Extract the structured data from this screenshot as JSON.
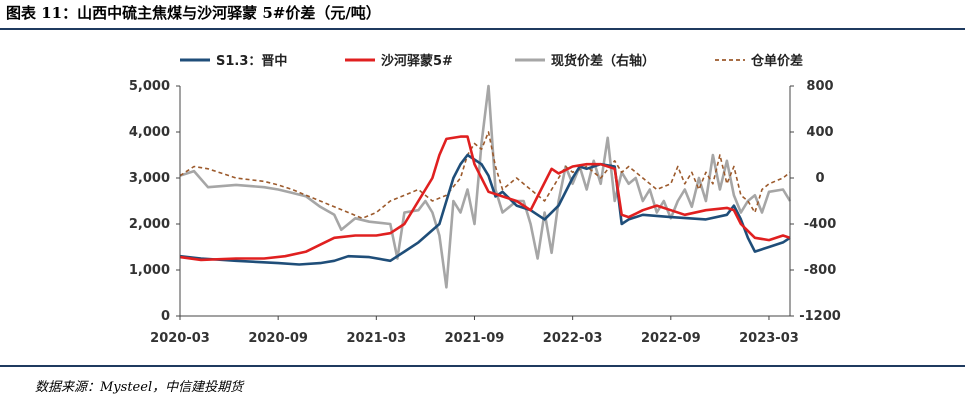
{
  "header": {
    "title": "图表 11：山西中硫主焦煤与沙河驿蒙 5#价差（元/吨）"
  },
  "footer": {
    "source": "数据来源：Mysteel，中信建投期货"
  },
  "chart_data": {
    "type": "line",
    "x_ticks": [
      "2020-03",
      "2020-09",
      "2021-03",
      "2021-09",
      "2022-03",
      "2022-09",
      "2023-03"
    ],
    "x_range": [
      "2020-03",
      "2023-08"
    ],
    "y_left": {
      "ticks": [
        "0",
        "1,000",
        "2,000",
        "3,000",
        "4,000",
        "5,000"
      ],
      "range": [
        0,
        5000
      ]
    },
    "y_right": {
      "ticks": [
        "-1200",
        "-800",
        "-400",
        "0",
        "400",
        "800"
      ],
      "range": [
        -1200,
        800
      ]
    },
    "legend_position": "top",
    "grid": false,
    "series": [
      {
        "name": "S1.3：晋中",
        "axis": "left",
        "color": "#1f4e79",
        "style": "solid",
        "points": [
          [
            0,
            1300
          ],
          [
            3,
            1250
          ],
          [
            8,
            1200
          ],
          [
            14,
            1150
          ],
          [
            17,
            1120
          ],
          [
            20,
            1150
          ],
          [
            22,
            1200
          ],
          [
            24,
            1300
          ],
          [
            27,
            1280
          ],
          [
            30,
            1200
          ],
          [
            32,
            1400
          ],
          [
            34,
            1600
          ],
          [
            37,
            2000
          ],
          [
            38,
            2500
          ],
          [
            39,
            3000
          ],
          [
            40,
            3300
          ],
          [
            41,
            3500
          ],
          [
            43,
            3300
          ],
          [
            44,
            3050
          ],
          [
            45,
            2600
          ],
          [
            46,
            2700
          ],
          [
            48,
            2400
          ],
          [
            50,
            2300
          ],
          [
            52,
            2100
          ],
          [
            54,
            2400
          ],
          [
            56,
            3000
          ],
          [
            57,
            3250
          ],
          [
            58,
            3200
          ],
          [
            60,
            3300
          ],
          [
            62,
            3250
          ],
          [
            63,
            2000
          ],
          [
            64,
            2100
          ],
          [
            66,
            2200
          ],
          [
            70,
            2150
          ],
          [
            75,
            2100
          ],
          [
            78,
            2200
          ],
          [
            79,
            2400
          ],
          [
            80,
            2100
          ],
          [
            81,
            1700
          ],
          [
            82,
            1400
          ],
          [
            84,
            1500
          ],
          [
            86,
            1600
          ],
          [
            87,
            1700
          ]
        ]
      },
      {
        "name": "沙河驿蒙5#",
        "axis": "left",
        "color": "#e02020",
        "style": "solid",
        "points": [
          [
            0,
            1280
          ],
          [
            3,
            1220
          ],
          [
            8,
            1250
          ],
          [
            12,
            1250
          ],
          [
            15,
            1300
          ],
          [
            18,
            1400
          ],
          [
            20,
            1550
          ],
          [
            22,
            1700
          ],
          [
            25,
            1750
          ],
          [
            28,
            1750
          ],
          [
            30,
            1800
          ],
          [
            32,
            2000
          ],
          [
            34,
            2500
          ],
          [
            36,
            3000
          ],
          [
            37,
            3500
          ],
          [
            38,
            3850
          ],
          [
            40,
            3900
          ],
          [
            41,
            3900
          ],
          [
            42,
            3300
          ],
          [
            43,
            3000
          ],
          [
            44,
            2700
          ],
          [
            46,
            2600
          ],
          [
            48,
            2500
          ],
          [
            50,
            2300
          ],
          [
            51,
            2600
          ],
          [
            53,
            3200
          ],
          [
            54,
            3100
          ],
          [
            56,
            3250
          ],
          [
            58,
            3300
          ],
          [
            60,
            3300
          ],
          [
            62,
            3200
          ],
          [
            63,
            2200
          ],
          [
            64,
            2150
          ],
          [
            66,
            2300
          ],
          [
            68,
            2400
          ],
          [
            70,
            2300
          ],
          [
            72,
            2200
          ],
          [
            75,
            2300
          ],
          [
            78,
            2350
          ],
          [
            79,
            2300
          ],
          [
            80,
            2000
          ],
          [
            81,
            1850
          ],
          [
            82,
            1700
          ],
          [
            84,
            1650
          ],
          [
            86,
            1750
          ],
          [
            87,
            1700
          ]
        ]
      },
      {
        "name": "现货价差（右轴）",
        "axis": "right",
        "color": "#a6a6a6",
        "style": "solid",
        "points": [
          [
            0,
            20
          ],
          [
            2,
            60
          ],
          [
            4,
            -80
          ],
          [
            8,
            -60
          ],
          [
            12,
            -80
          ],
          [
            14,
            -100
          ],
          [
            16,
            -130
          ],
          [
            18,
            -160
          ],
          [
            20,
            -250
          ],
          [
            22,
            -320
          ],
          [
            23,
            -450
          ],
          [
            25,
            -350
          ],
          [
            27,
            -380
          ],
          [
            30,
            -400
          ],
          [
            31,
            -700
          ],
          [
            32,
            -300
          ],
          [
            34,
            -280
          ],
          [
            35,
            -200
          ],
          [
            36,
            -300
          ],
          [
            37,
            -500
          ],
          [
            38,
            -950
          ],
          [
            39,
            -200
          ],
          [
            40,
            -300
          ],
          [
            41,
            -100
          ],
          [
            42,
            -400
          ],
          [
            43,
            300
          ],
          [
            44,
            800
          ],
          [
            45,
            -100
          ],
          [
            46,
            -300
          ],
          [
            48,
            -200
          ],
          [
            49,
            -200
          ],
          [
            50,
            -400
          ],
          [
            51,
            -700
          ],
          [
            52,
            -300
          ],
          [
            53,
            -650
          ],
          [
            54,
            -200
          ],
          [
            55,
            100
          ],
          [
            56,
            -50
          ],
          [
            57,
            100
          ],
          [
            58,
            -100
          ],
          [
            59,
            150
          ],
          [
            60,
            -50
          ],
          [
            61,
            350
          ],
          [
            62,
            -200
          ],
          [
            63,
            50
          ],
          [
            64,
            -50
          ],
          [
            65,
            0
          ],
          [
            66,
            -200
          ],
          [
            67,
            -100
          ],
          [
            68,
            -300
          ],
          [
            69,
            -200
          ],
          [
            70,
            -350
          ],
          [
            71,
            -200
          ],
          [
            72,
            -100
          ],
          [
            73,
            -250
          ],
          [
            74,
            0
          ],
          [
            75,
            -200
          ],
          [
            76,
            200
          ],
          [
            77,
            -100
          ],
          [
            78,
            150
          ],
          [
            79,
            -150
          ],
          [
            80,
            -300
          ],
          [
            81,
            -200
          ],
          [
            82,
            -150
          ],
          [
            83,
            -300
          ],
          [
            84,
            -120
          ],
          [
            86,
            -100
          ],
          [
            87,
            -200
          ]
        ]
      },
      {
        "name": "仓单价差",
        "axis": "right",
        "color": "#9c5a2c",
        "style": "dashed",
        "points": [
          [
            0,
            20
          ],
          [
            2,
            100
          ],
          [
            4,
            80
          ],
          [
            6,
            40
          ],
          [
            8,
            0
          ],
          [
            12,
            -30
          ],
          [
            14,
            -60
          ],
          [
            16,
            -100
          ],
          [
            18,
            -150
          ],
          [
            20,
            -200
          ],
          [
            22,
            -250
          ],
          [
            24,
            -300
          ],
          [
            26,
            -350
          ],
          [
            28,
            -300
          ],
          [
            30,
            -200
          ],
          [
            32,
            -150
          ],
          [
            34,
            -100
          ],
          [
            36,
            -200
          ],
          [
            38,
            -150
          ],
          [
            40,
            0
          ],
          [
            41,
            200
          ],
          [
            42,
            300
          ],
          [
            43,
            250
          ],
          [
            44,
            400
          ],
          [
            45,
            100
          ],
          [
            46,
            -100
          ],
          [
            48,
            0
          ],
          [
            50,
            -100
          ],
          [
            52,
            -200
          ],
          [
            54,
            0
          ],
          [
            55,
            100
          ],
          [
            56,
            50
          ],
          [
            58,
            100
          ],
          [
            60,
            0
          ],
          [
            62,
            150
          ],
          [
            63,
            50
          ],
          [
            64,
            100
          ],
          [
            66,
            0
          ],
          [
            68,
            -100
          ],
          [
            70,
            -50
          ],
          [
            71,
            100
          ],
          [
            72,
            -50
          ],
          [
            73,
            50
          ],
          [
            74,
            -100
          ],
          [
            75,
            50
          ],
          [
            76,
            -50
          ],
          [
            77,
            200
          ],
          [
            78,
            -50
          ],
          [
            79,
            100
          ],
          [
            80,
            -150
          ],
          [
            81,
            -200
          ],
          [
            82,
            -300
          ],
          [
            83,
            -100
          ],
          [
            84,
            -50
          ],
          [
            86,
            0
          ],
          [
            87,
            50
          ]
        ]
      }
    ]
  }
}
